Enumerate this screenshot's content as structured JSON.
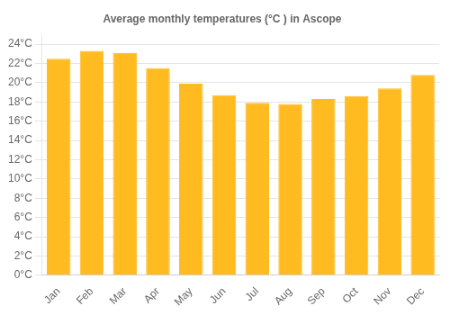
{
  "chart_data": {
    "type": "bar",
    "title": "Average monthly temperatures (°C ) in Ascope",
    "categories": [
      "Jan",
      "Feb",
      "Mar",
      "Apr",
      "May",
      "Jun",
      "Jul",
      "Aug",
      "Sep",
      "Oct",
      "Nov",
      "Dec"
    ],
    "values": [
      22.5,
      23.3,
      23.1,
      21.5,
      19.9,
      18.7,
      17.9,
      17.8,
      18.3,
      18.6,
      19.4,
      20.8
    ],
    "color": "#FFBB20",
    "ylim": [
      0,
      25
    ],
    "yticks": [
      {
        "value": 0,
        "label": "0°C"
      },
      {
        "value": 2,
        "label": "2°C"
      },
      {
        "value": 4,
        "label": "4°C"
      },
      {
        "value": 6,
        "label": "6°C"
      },
      {
        "value": 8,
        "label": "8°C"
      },
      {
        "value": 10,
        "label": "10°C"
      },
      {
        "value": 12,
        "label": "12°C"
      },
      {
        "value": 14,
        "label": "14°C"
      },
      {
        "value": 16,
        "label": "16°C"
      },
      {
        "value": 18,
        "label": "18°C"
      },
      {
        "value": 20,
        "label": "20°C"
      },
      {
        "value": 22,
        "label": "22°C"
      },
      {
        "value": 24,
        "label": "24°C"
      }
    ],
    "grid": true
  }
}
